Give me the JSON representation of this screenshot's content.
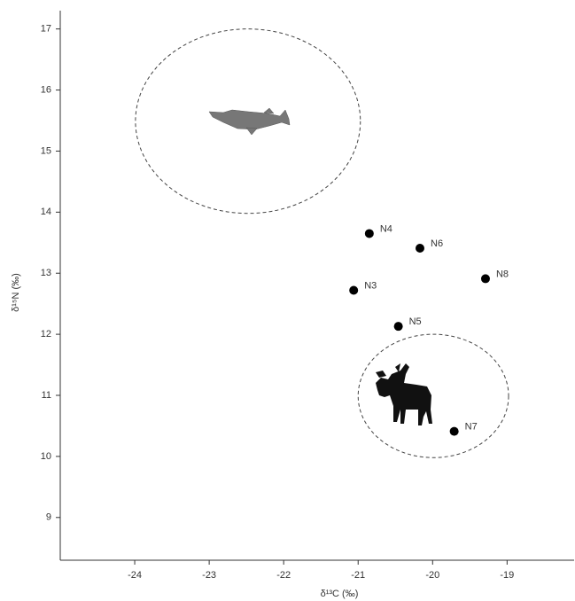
{
  "chart_data": {
    "type": "scatter",
    "x_label": "δ¹³C (‰)",
    "y_label": "δ¹⁵N (‰)",
    "labels": [
      "N4",
      "N6",
      "N8",
      "N3",
      "N5",
      "N7"
    ],
    "x": [
      -20.85,
      -20.17,
      -19.29,
      -21.06,
      -20.46,
      -19.71
    ],
    "y": [
      13.65,
      13.41,
      12.91,
      12.72,
      12.13,
      10.41
    ],
    "color": "#000000",
    "ellipses": [
      {
        "cx": -22.48,
        "cy": 15.49,
        "rx": 1.51,
        "ry": 1.51
      },
      {
        "cx": -19.99,
        "cy": 10.99,
        "rx": 1.01,
        "ry": 1.01
      }
    ],
    "xlim": [
      -25,
      -18.1
    ],
    "ylim": [
      8.3,
      17.3
    ],
    "xticks": [
      -24,
      -23,
      -22,
      -21,
      -20,
      -19
    ],
    "yticks": [
      9,
      10,
      11,
      12,
      13,
      14,
      15,
      16,
      17
    ],
    "grid": false
  }
}
